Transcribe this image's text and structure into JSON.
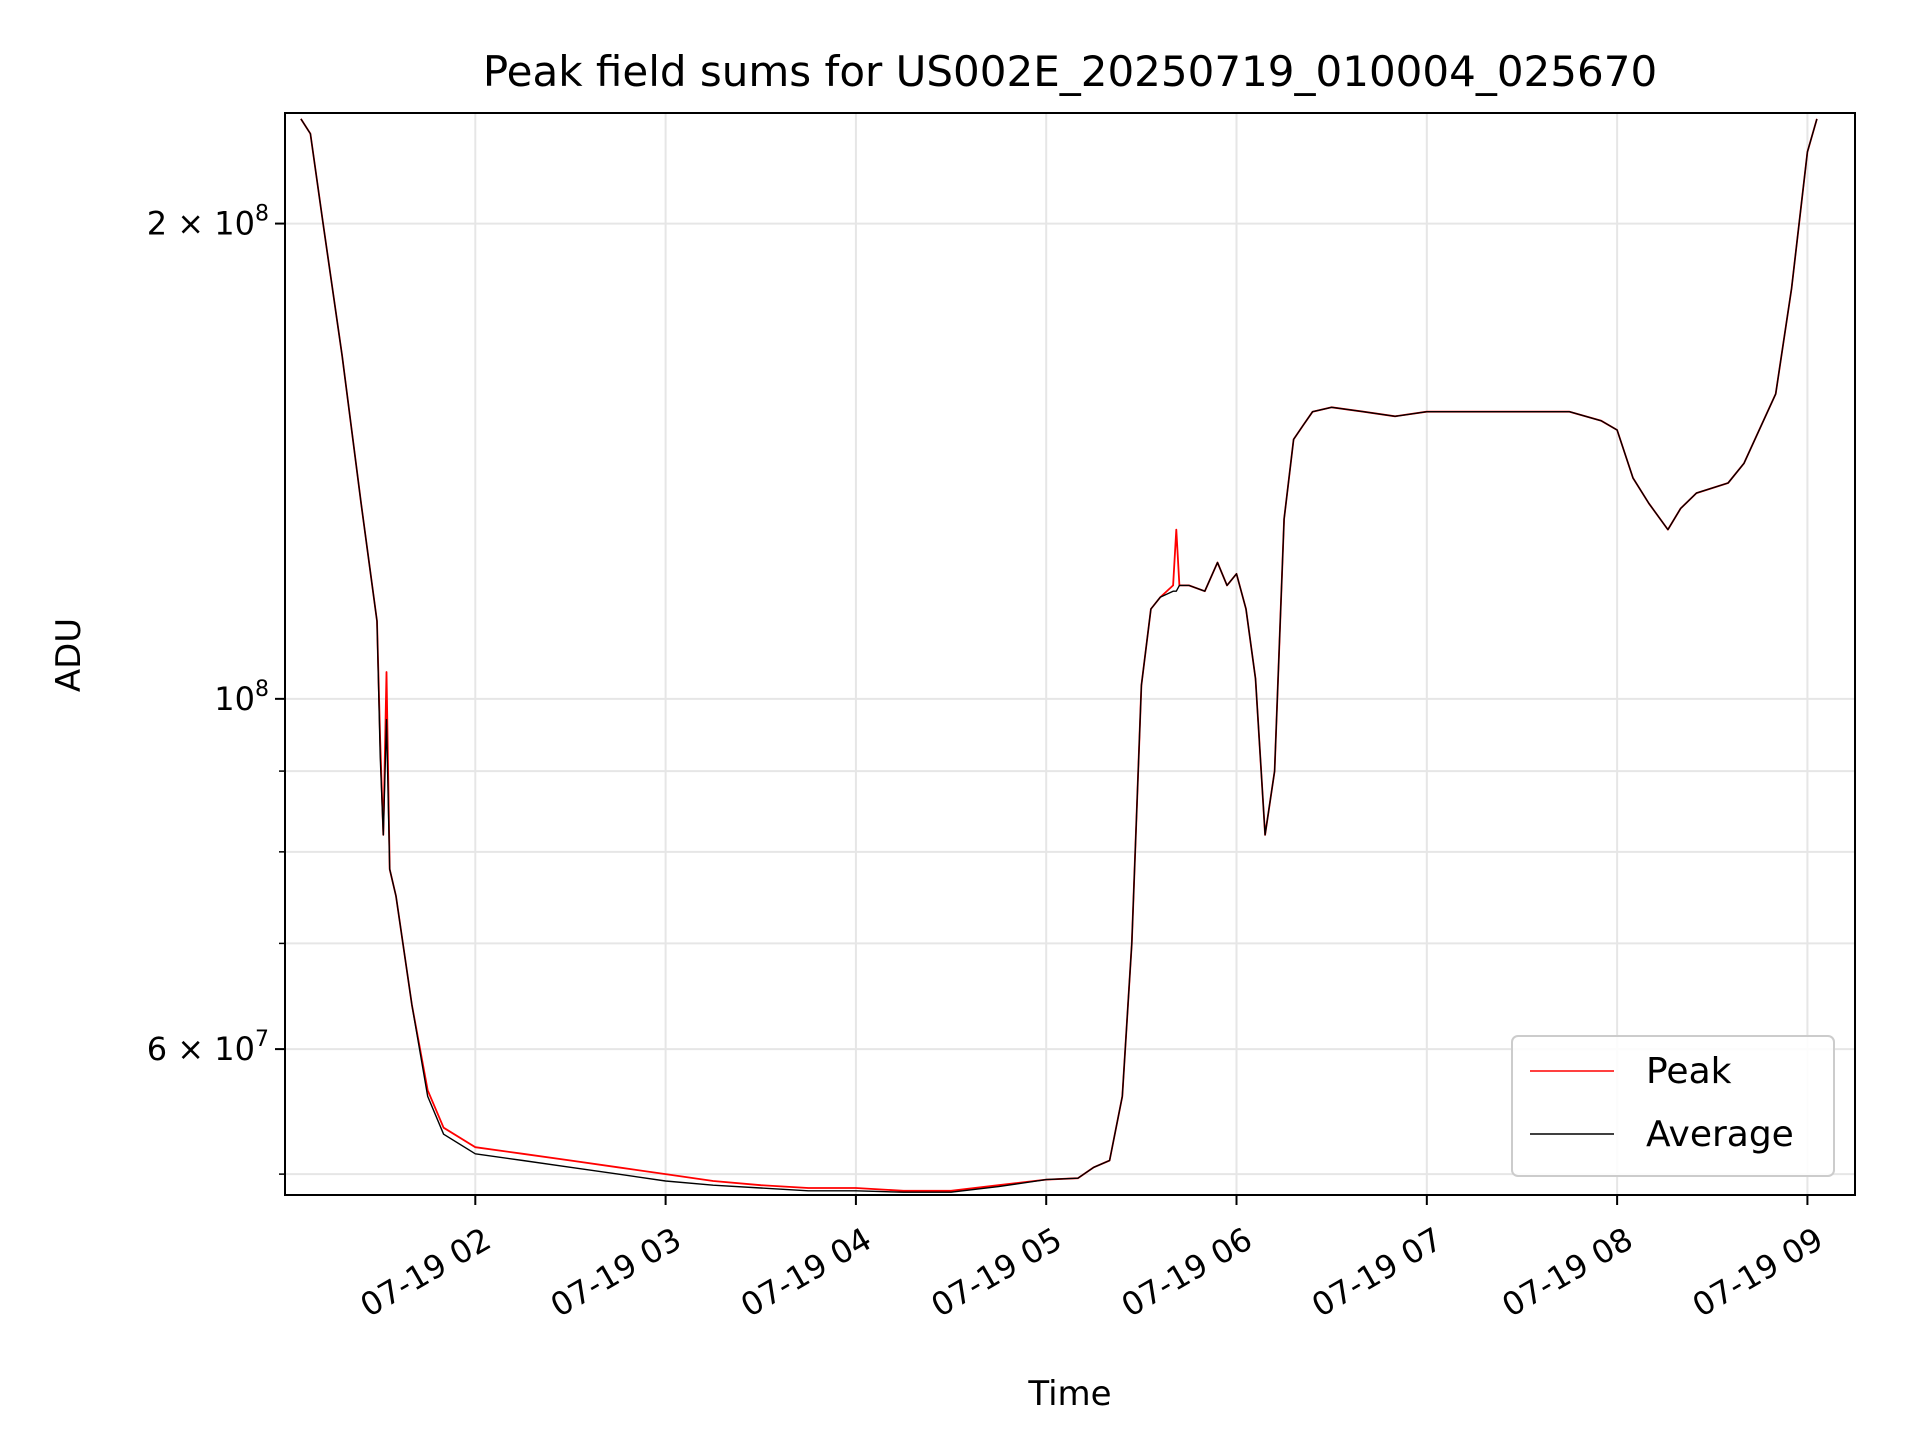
{
  "chart_data": {
    "type": "line",
    "title": "Peak field sums for US002E_20250719_010004_025670",
    "xlabel": "Time",
    "ylabel": "ADU",
    "y_scale": "log",
    "ylim": [
      48500000,
      235000000
    ],
    "xlim": [
      "2025-07-19T01:00",
      "2025-07-19T09:15"
    ],
    "grid": true,
    "legend_position": "lower-right",
    "x_ticks": [
      {
        "t": "2025-07-19T02:00",
        "label": "07-19 02"
      },
      {
        "t": "2025-07-19T03:00",
        "label": "07-19 03"
      },
      {
        "t": "2025-07-19T04:00",
        "label": "07-19 04"
      },
      {
        "t": "2025-07-19T05:00",
        "label": "07-19 05"
      },
      {
        "t": "2025-07-19T06:00",
        "label": "07-19 06"
      },
      {
        "t": "2025-07-19T07:00",
        "label": "07-19 07"
      },
      {
        "t": "2025-07-19T08:00",
        "label": "07-19 08"
      },
      {
        "t": "2025-07-19T09:00",
        "label": "07-19 09"
      }
    ],
    "y_ticks_major": [
      {
        "value": 200000000,
        "mant": "2 × 10",
        "exp": "8"
      },
      {
        "value": 100000000,
        "mant": "10",
        "exp": "8"
      },
      {
        "value": 60000000,
        "mant": "6 × 10",
        "exp": "7"
      }
    ],
    "y_ticks_minor": [
      50000000,
      70000000,
      80000000,
      90000000
    ],
    "series": [
      {
        "name": "Peak",
        "color": "#ff0000",
        "x": [
          "2025-07-19T01:05",
          "2025-07-19T01:08",
          "2025-07-19T01:12",
          "2025-07-19T01:18",
          "2025-07-19T01:24",
          "2025-07-19T01:29",
          "2025-07-19T01:30",
          "2025-07-19T01:31",
          "2025-07-19T01:32",
          "2025-07-19T01:33",
          "2025-07-19T01:35",
          "2025-07-19T01:40",
          "2025-07-19T01:45",
          "2025-07-19T01:50",
          "2025-07-19T02:00",
          "2025-07-19T02:15",
          "2025-07-19T02:30",
          "2025-07-19T02:45",
          "2025-07-19T03:00",
          "2025-07-19T03:15",
          "2025-07-19T03:30",
          "2025-07-19T03:45",
          "2025-07-19T04:00",
          "2025-07-19T04:15",
          "2025-07-19T04:30",
          "2025-07-19T04:45",
          "2025-07-19T05:00",
          "2025-07-19T05:10",
          "2025-07-19T05:15",
          "2025-07-19T05:20",
          "2025-07-19T05:24",
          "2025-07-19T05:27",
          "2025-07-19T05:30",
          "2025-07-19T05:33",
          "2025-07-19T05:36",
          "2025-07-19T05:40",
          "2025-07-19T05:41",
          "2025-07-19T05:42",
          "2025-07-19T05:45",
          "2025-07-19T05:50",
          "2025-07-19T05:54",
          "2025-07-19T05:57",
          "2025-07-19T06:00",
          "2025-07-19T06:03",
          "2025-07-19T06:06",
          "2025-07-19T06:09",
          "2025-07-19T06:12",
          "2025-07-19T06:15",
          "2025-07-19T06:18",
          "2025-07-19T06:21",
          "2025-07-19T06:24",
          "2025-07-19T06:30",
          "2025-07-19T06:40",
          "2025-07-19T06:50",
          "2025-07-19T07:00",
          "2025-07-19T07:15",
          "2025-07-19T07:30",
          "2025-07-19T07:45",
          "2025-07-19T07:55",
          "2025-07-19T08:00",
          "2025-07-19T08:05",
          "2025-07-19T08:10",
          "2025-07-19T08:16",
          "2025-07-19T08:20",
          "2025-07-19T08:25",
          "2025-07-19T08:35",
          "2025-07-19T08:40",
          "2025-07-19T08:50",
          "2025-07-19T08:55",
          "2025-07-19T09:00",
          "2025-07-19T09:03"
        ],
        "values": [
          233000000,
          228000000,
          200000000,
          165000000,
          133000000,
          112000000,
          94000000,
          82000000,
          104000000,
          78000000,
          75000000,
          64000000,
          56500000,
          53500000,
          52000000,
          51500000,
          51000000,
          50500000,
          50000000,
          49500000,
          49200000,
          49000000,
          49000000,
          48800000,
          48800000,
          49200000,
          49600000,
          49700000,
          50500000,
          51000000,
          56000000,
          70000000,
          102000000,
          114000000,
          116000000,
          118000000,
          128000000,
          118000000,
          118000000,
          117000000,
          122000000,
          118000000,
          120000000,
          114000000,
          103000000,
          82000000,
          90000000,
          130000000,
          146000000,
          149000000,
          152000000,
          153000000,
          152000000,
          151000000,
          152000000,
          152000000,
          152000000,
          152000000,
          150000000,
          148000000,
          138000000,
          133000000,
          128000000,
          132000000,
          135000000,
          137000000,
          141000000,
          156000000,
          182000000,
          222000000,
          233000000
        ]
      },
      {
        "name": "Average",
        "color": "#000000",
        "x": [
          "2025-07-19T01:05",
          "2025-07-19T01:08",
          "2025-07-19T01:12",
          "2025-07-19T01:18",
          "2025-07-19T01:24",
          "2025-07-19T01:29",
          "2025-07-19T01:30",
          "2025-07-19T01:31",
          "2025-07-19T01:32",
          "2025-07-19T01:33",
          "2025-07-19T01:35",
          "2025-07-19T01:40",
          "2025-07-19T01:45",
          "2025-07-19T01:50",
          "2025-07-19T02:00",
          "2025-07-19T02:15",
          "2025-07-19T02:30",
          "2025-07-19T02:45",
          "2025-07-19T03:00",
          "2025-07-19T03:15",
          "2025-07-19T03:30",
          "2025-07-19T03:45",
          "2025-07-19T04:00",
          "2025-07-19T04:15",
          "2025-07-19T04:30",
          "2025-07-19T04:45",
          "2025-07-19T05:00",
          "2025-07-19T05:10",
          "2025-07-19T05:15",
          "2025-07-19T05:20",
          "2025-07-19T05:24",
          "2025-07-19T05:27",
          "2025-07-19T05:30",
          "2025-07-19T05:33",
          "2025-07-19T05:36",
          "2025-07-19T05:40",
          "2025-07-19T05:41",
          "2025-07-19T05:42",
          "2025-07-19T05:45",
          "2025-07-19T05:50",
          "2025-07-19T05:54",
          "2025-07-19T05:57",
          "2025-07-19T06:00",
          "2025-07-19T06:03",
          "2025-07-19T06:06",
          "2025-07-19T06:09",
          "2025-07-19T06:12",
          "2025-07-19T06:15",
          "2025-07-19T06:18",
          "2025-07-19T06:21",
          "2025-07-19T06:24",
          "2025-07-19T06:30",
          "2025-07-19T06:40",
          "2025-07-19T06:50",
          "2025-07-19T07:00",
          "2025-07-19T07:15",
          "2025-07-19T07:30",
          "2025-07-19T07:45",
          "2025-07-19T07:55",
          "2025-07-19T08:00",
          "2025-07-19T08:05",
          "2025-07-19T08:10",
          "2025-07-19T08:16",
          "2025-07-19T08:20",
          "2025-07-19T08:25",
          "2025-07-19T08:35",
          "2025-07-19T08:40",
          "2025-07-19T08:50",
          "2025-07-19T08:55",
          "2025-07-19T09:00",
          "2025-07-19T09:03"
        ],
        "values": [
          233000000,
          228000000,
          200000000,
          165000000,
          133000000,
          112000000,
          92000000,
          82000000,
          97000000,
          78000000,
          75000000,
          64000000,
          56000000,
          53000000,
          51500000,
          51000000,
          50500000,
          50000000,
          49500000,
          49200000,
          49000000,
          48800000,
          48800000,
          48700000,
          48700000,
          49100000,
          49600000,
          49700000,
          50500000,
          51000000,
          56000000,
          70000000,
          102000000,
          114000000,
          116000000,
          117000000,
          117000000,
          118000000,
          118000000,
          117000000,
          122000000,
          118000000,
          120000000,
          114000000,
          103000000,
          82000000,
          90000000,
          130000000,
          146000000,
          149000000,
          152000000,
          153000000,
          152000000,
          151000000,
          152000000,
          152000000,
          152000000,
          152000000,
          150000000,
          148000000,
          138000000,
          133000000,
          128000000,
          132000000,
          135000000,
          137000000,
          141000000,
          156000000,
          182000000,
          222000000,
          233000000
        ]
      }
    ]
  }
}
